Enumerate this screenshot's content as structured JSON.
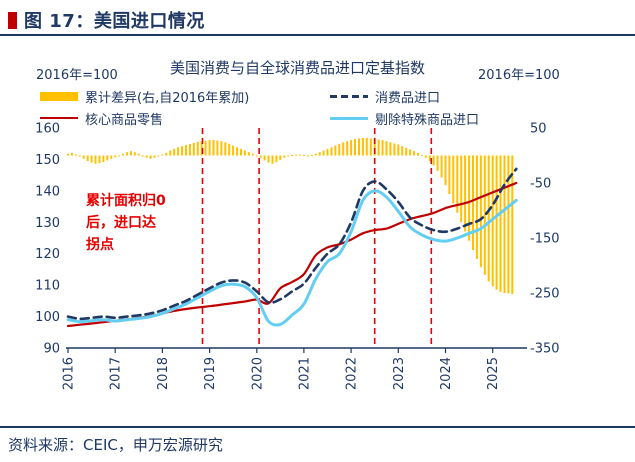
{
  "header": {
    "title": "图 17：美国进口情况"
  },
  "chart": {
    "title": "美国消费与自全球消费品进口定基指数",
    "left_unit": "2016年=100",
    "right_unit": "2016年=100",
    "annotation": [
      "累计面积归0",
      "后，进口达",
      "拐点"
    ]
  },
  "legend": {
    "items": [
      {
        "label": "累计差异(右,自2016年累加)",
        "swatch": "bar",
        "color": "#FFC000"
      },
      {
        "label": "消费品进口",
        "swatch": "dashed-line",
        "color": "#1F3864"
      },
      {
        "label": "核心商品零售",
        "swatch": "line",
        "color": "#C00000"
      },
      {
        "label": "剔除特殊商品进口",
        "swatch": "line",
        "color": "#63CEF2"
      }
    ]
  },
  "footer": {
    "source": "资料来源：CEIC，申万宏源研究"
  },
  "colors": {
    "navy": "#1F3864",
    "red": "#C00000",
    "bright_red": "#E60000",
    "gold": "#FFC000",
    "sky": "#63CEF2"
  },
  "chart_data": {
    "type": "line+bar",
    "title": "美国消费与自全球消费品进口定基指数",
    "x_range": [
      2016,
      2025.6
    ],
    "x_ticks": [
      2016,
      2017,
      2018,
      2019,
      2020,
      2021,
      2022,
      2023,
      2024,
      2025
    ],
    "left_axis": {
      "label": "2016年=100",
      "lim": [
        90,
        160
      ],
      "ticks": [
        90,
        100,
        110,
        120,
        130,
        140,
        150,
        160
      ]
    },
    "right_axis": {
      "label": "2016年=100",
      "lim": [
        -350,
        50
      ],
      "ticks": [
        -350,
        -250,
        -150,
        -50,
        50
      ]
    },
    "vlines": {
      "color": "#E60000",
      "x": [
        2018.85,
        2020.05,
        2022.5,
        2023.7
      ]
    },
    "bars": {
      "name": "累计差异(右,自2016年累加)",
      "axis": "right",
      "color": "#FFC000",
      "x_start": 2016.0,
      "x_step": 0.08333,
      "values": [
        3,
        5,
        2,
        -2,
        -6,
        -10,
        -13,
        -15,
        -14,
        -12,
        -9,
        -6,
        -3,
        0,
        3,
        6,
        8,
        6,
        3,
        -1,
        -4,
        -6,
        -4,
        -1,
        2,
        5,
        9,
        12,
        15,
        17,
        19,
        21,
        23,
        25,
        26,
        27,
        28,
        28,
        27,
        26,
        24,
        21,
        18,
        15,
        12,
        9,
        6,
        3,
        0,
        -4,
        -9,
        -13,
        -15,
        -12,
        -8,
        -4,
        -1,
        1,
        2,
        2,
        1,
        0,
        1,
        3,
        6,
        9,
        12,
        15,
        18,
        21,
        24,
        26,
        28,
        30,
        31,
        32,
        32,
        31,
        30,
        29,
        28,
        26,
        24,
        22,
        20,
        17,
        14,
        11,
        8,
        5,
        1,
        -4,
        -10,
        -18,
        -28,
        -40,
        -54,
        -70,
        -87,
        -104,
        -121,
        -138,
        -155,
        -172,
        -188,
        -203,
        -217,
        -229,
        -238,
        -244,
        -248,
        -250,
        -251,
        -252
      ]
    },
    "series": [
      {
        "name": "核心商品零售",
        "axis": "left",
        "color": "#C00000",
        "dash": "",
        "width": 2.2,
        "x_start": 2016.0,
        "x_step": 0.25,
        "values": [
          97.0,
          97.4,
          97.8,
          98.2,
          98.7,
          99.1,
          99.6,
          100.2,
          101.0,
          101.8,
          102.4,
          102.9,
          103.3,
          103.8,
          104.3,
          104.8,
          105.4,
          104.2,
          109.0,
          111.0,
          113.5,
          119.5,
          122.0,
          123.0,
          124.5,
          126.5,
          127.5,
          128.0,
          129.5,
          131.0,
          132.0,
          133.0,
          134.5,
          135.5,
          136.5,
          138.0,
          139.5,
          141.0,
          142.5
        ]
      },
      {
        "name": "剔除特殊商品进口",
        "axis": "left",
        "color": "#63CEF2",
        "dash": "",
        "width": 3,
        "x_start": 2016.0,
        "x_step": 0.25,
        "values": [
          99.0,
          98.4,
          98.7,
          99.0,
          98.6,
          99.0,
          99.4,
          100.0,
          101.0,
          102.5,
          104.0,
          106.0,
          108.0,
          109.8,
          110.3,
          109.5,
          106.0,
          98.5,
          97.5,
          100.5,
          104.0,
          112.0,
          117.5,
          120.0,
          127.0,
          137.0,
          140.0,
          138.0,
          133.5,
          128.5,
          126.0,
          124.5,
          124.0,
          125.0,
          126.5,
          128.0,
          131.0,
          134.0,
          137.0
        ]
      },
      {
        "name": "消费品进口",
        "axis": "left",
        "color": "#1F3864",
        "dash": "8 5",
        "width": 2.6,
        "x_start": 2016.0,
        "x_step": 0.25,
        "values": [
          100.0,
          99.3,
          99.6,
          100.0,
          99.6,
          100.0,
          100.4,
          101.0,
          102.0,
          103.5,
          105.0,
          107.0,
          109.0,
          110.8,
          111.5,
          110.8,
          108.0,
          104.5,
          105.5,
          108.0,
          110.5,
          115.5,
          120.0,
          123.0,
          130.0,
          140.0,
          143.0,
          140.5,
          136.5,
          131.5,
          129.0,
          127.5,
          127.0,
          128.0,
          129.5,
          131.0,
          135.5,
          142.0,
          147.0
        ]
      }
    ]
  }
}
